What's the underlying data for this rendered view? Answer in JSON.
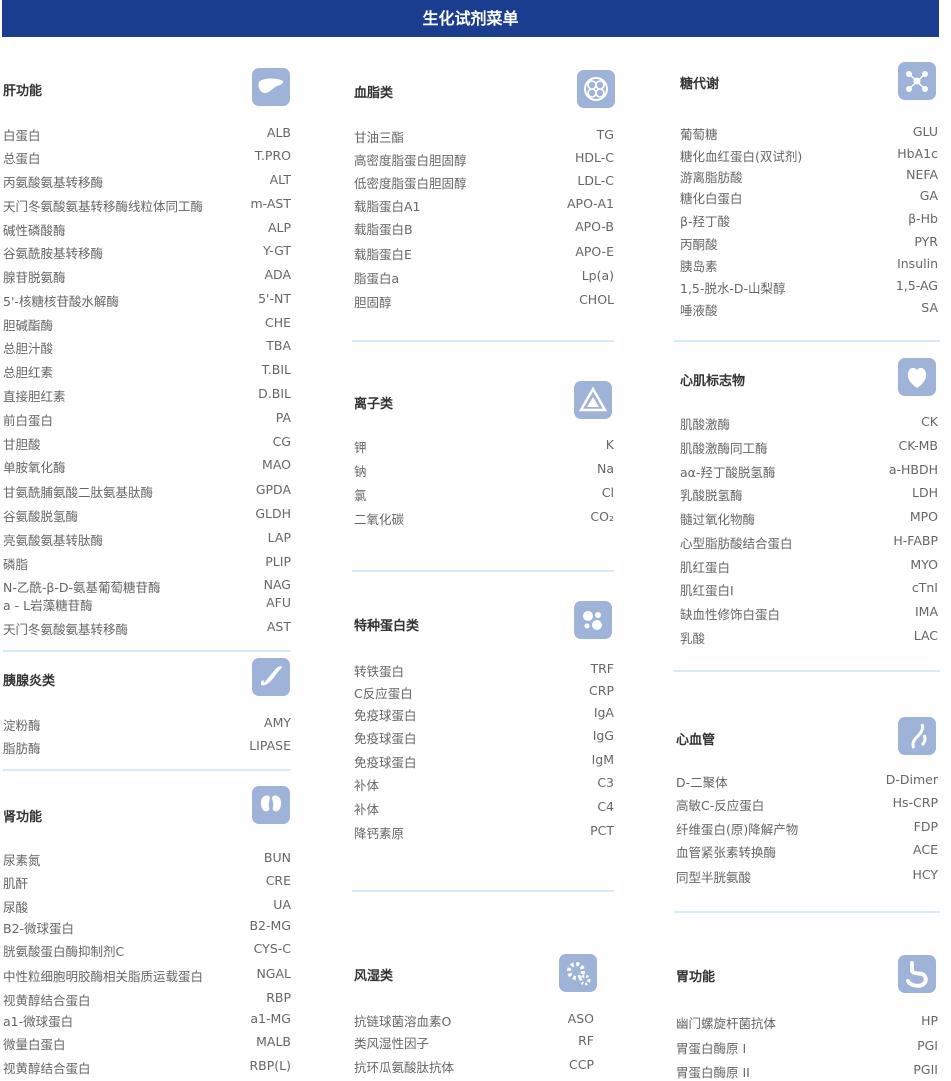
{
  "header": {
    "title": "生化试剂菜单"
  },
  "sections": [
    {
      "title": "肝功能",
      "icon": "liver-icon",
      "items": [
        [
          "白蛋白",
          "ALB"
        ],
        [
          "总蛋白",
          "T.PRO"
        ],
        [
          "丙氨酸氨基转移酶",
          "ALT"
        ],
        [
          "天门冬氨酸氨基转移酶线粒体同工酶",
          "m-AST"
        ],
        [
          "碱性磷酸酶",
          "ALP"
        ],
        [
          "谷氨酰胺基转移酶",
          "Y-GT"
        ],
        [
          "腺苷脱氨酶",
          "ADA"
        ],
        [
          "5'-核糖核苷酸水解酶",
          "5'-NT"
        ],
        [
          "胆碱酯酶",
          "CHE"
        ],
        [
          "总胆汁酸",
          "TBA"
        ],
        [
          "总胆红素",
          "T.BIL"
        ],
        [
          "直接胆红素",
          "D.BIL"
        ],
        [
          "前白蛋白",
          "PA"
        ],
        [
          "甘胆酸",
          "CG"
        ],
        [
          "单胺氧化酶",
          "MAO"
        ],
        [
          "甘氨酰脯氨酸二肽氨基肽酶",
          "GPDA"
        ],
        [
          "谷氨酸脱氢酶",
          "GLDH"
        ],
        [
          "亮氨酸氨基转肽酶",
          "LAP"
        ],
        [
          "磷脂",
          "PLIP"
        ],
        [
          "N-乙酰-β-D-氨基葡萄糖苷酶",
          "NAG"
        ],
        [
          "a - L岩藻糖苷酶",
          "AFU"
        ],
        [
          "天门冬氨酸氨基转移酶",
          "AST"
        ]
      ]
    },
    {
      "title": "胰腺炎类",
      "icon": "pancreas-icon",
      "items": [
        [
          "淀粉酶",
          "AMY"
        ],
        [
          "脂肪酶",
          "LIPASE"
        ]
      ]
    },
    {
      "title": "肾功能",
      "icon": "kidney-icon",
      "items": [
        [
          "尿素氮",
          "BUN"
        ],
        [
          "肌酐",
          "CRE"
        ],
        [
          "尿酸",
          "UA"
        ],
        [
          "B2-微球蛋白",
          "B2-MG"
        ],
        [
          "胱氨酸蛋白酶抑制剂C",
          "CYS-C"
        ],
        [
          "中性粒细胞明胶酶相关脂质运载蛋白",
          "NGAL"
        ],
        [
          "视黄醇结合蛋白",
          "RBP"
        ],
        [
          "a1-微球蛋白",
          "a1-MG"
        ],
        [
          "微量白蛋白",
          "MALB"
        ],
        [
          "视黄醇结合蛋白",
          "RBP(L)"
        ]
      ]
    },
    {
      "title": "血脂类",
      "icon": "lipid-icon",
      "items": [
        [
          "甘油三酯",
          "TG"
        ],
        [
          "高密度脂蛋白胆固醇",
          "HDL-C"
        ],
        [
          "低密度脂蛋白胆固醇",
          "LDL-C"
        ],
        [
          "载脂蛋白A1",
          "APO-A1"
        ],
        [
          "载脂蛋白B",
          "APO-B"
        ],
        [
          "载脂蛋白E",
          "APO-E"
        ],
        [
          "脂蛋白a",
          "Lp(a)"
        ],
        [
          "胆固醇",
          "CHOL"
        ]
      ]
    },
    {
      "title": "离子类",
      "icon": "ion-icon",
      "items": [
        [
          "钾",
          "K"
        ],
        [
          "钠",
          "Na"
        ],
        [
          "氯",
          "Cl"
        ],
        [
          "二氧化碳",
          "CO₂"
        ]
      ]
    },
    {
      "title": "特种蛋白类",
      "icon": "protein-icon",
      "items": [
        [
          "转铁蛋白",
          "TRF"
        ],
        [
          "C反应蛋白",
          "CRP"
        ],
        [
          "免疫球蛋白",
          "IgA"
        ],
        [
          "免疫球蛋白",
          "IgG"
        ],
        [
          "免疫球蛋白",
          "IgM"
        ],
        [
          "补体",
          "C3"
        ],
        [
          "补体",
          "C4"
        ],
        [
          "降钙素原",
          "PCT"
        ]
      ]
    },
    {
      "title": "风湿类",
      "icon": "rheumatism-icon",
      "items": [
        [
          "抗链球菌溶血素O",
          "ASO"
        ],
        [
          "类风湿性因子",
          "RF"
        ],
        [
          "抗环瓜氨酸肽抗体",
          "CCP"
        ]
      ]
    },
    {
      "title": "糖代谢",
      "icon": "glucose-icon",
      "items": [
        [
          "葡萄糖",
          "GLU"
        ],
        [
          "糖化血红蛋白(双试剂)",
          "HbA1c"
        ],
        [
          "游离脂肪酸",
          "NEFA"
        ],
        [
          "糖化白蛋白",
          "GA"
        ],
        [
          "β-羟丁酸",
          "β-Hb"
        ],
        [
          "丙酮酸",
          "PYR"
        ],
        [
          "胰岛素",
          "Insulin"
        ],
        [
          "1,5-脱水-D-山梨醇",
          "1,5-AG"
        ],
        [
          "唾液酸",
          "SA"
        ]
      ]
    },
    {
      "title": "心肌标志物",
      "icon": "heart-icon",
      "items": [
        [
          "肌酸激酶",
          "CK"
        ],
        [
          "肌酸激酶同工酶",
          "CK-MB"
        ],
        [
          "aα-羟丁酸脱氢酶",
          "a-HBDH"
        ],
        [
          "乳酸脱氢酶",
          "LDH"
        ],
        [
          "髓过氧化物酶",
          "MPO"
        ],
        [
          "心型脂肪酸结合蛋白",
          "H-FABP"
        ],
        [
          "肌红蛋白",
          "MYO"
        ],
        [
          "肌红蛋白I",
          "cTnI"
        ],
        [
          "缺血性修饰白蛋白",
          "IMA"
        ],
        [
          "乳酸",
          "LAC"
        ]
      ]
    },
    {
      "title": "心血管",
      "icon": "cardiovascular-icon",
      "items": [
        [
          "D-二聚体",
          "D-Dimer"
        ],
        [
          "高敏C-反应蛋白",
          "Hs-CRP"
        ],
        [
          "纤维蛋白(原)降解产物",
          "FDP"
        ],
        [
          "血管紧张素转换酶",
          "ACE"
        ],
        [
          "同型半胱氨酸",
          "HCY"
        ]
      ]
    },
    {
      "title": "胃功能",
      "icon": "stomach-icon",
      "items": [
        [
          "幽门螺旋杆菌抗体",
          "HP"
        ],
        [
          "胃蛋白酶原 I",
          "PGI"
        ],
        [
          "胃蛋白酶原 II",
          "PGII"
        ]
      ]
    }
  ]
}
